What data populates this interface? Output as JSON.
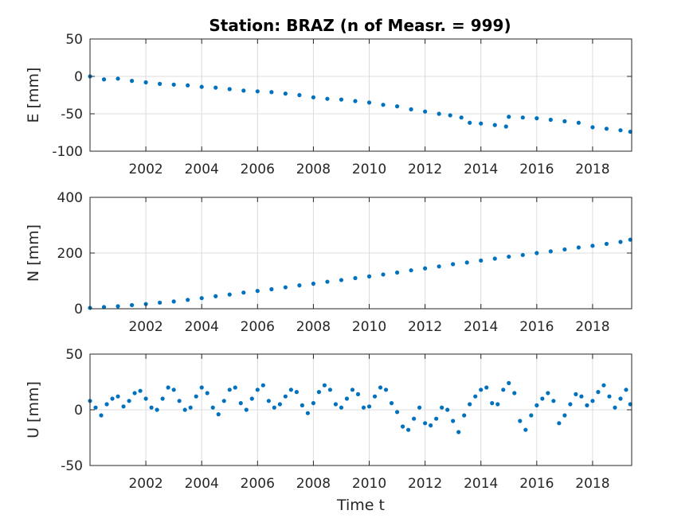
{
  "chart_data": [
    {
      "type": "scatter",
      "title": "Station: BRAZ (n of Measr. = 999)",
      "ylabel": "E [mm]",
      "xlabel": "",
      "xlim": [
        2000.0,
        2019.4
      ],
      "ylim": [
        -100,
        50
      ],
      "xticks": [
        2002,
        2004,
        2006,
        2008,
        2010,
        2012,
        2014,
        2016,
        2018
      ],
      "yticks": [
        -100,
        -50,
        0,
        50
      ],
      "grid": true,
      "color": "#0072BD",
      "series": [
        {
          "x": [
            2000.0,
            2000.5,
            2001.0,
            2001.5,
            2002.0,
            2002.5,
            2003.0,
            2003.5,
            2004.0,
            2004.5,
            2005.0,
            2005.5,
            2006.0,
            2006.5,
            2007.0,
            2007.5,
            2008.0,
            2008.5,
            2009.0,
            2009.5,
            2010.0,
            2010.5,
            2011.0,
            2011.5,
            2012.0,
            2012.5,
            2012.9,
            2013.3,
            2013.6,
            2014.0,
            2014.5,
            2014.9,
            2015.0,
            2015.5,
            2016.0,
            2016.5,
            2017.0,
            2017.5,
            2018.0,
            2018.5,
            2019.0,
            2019.35
          ],
          "y": [
            0,
            -4,
            -3,
            -6,
            -8,
            -10,
            -11,
            -12,
            -14,
            -15,
            -17,
            -19,
            -20,
            -21,
            -23,
            -25,
            -28,
            -30,
            -31,
            -33,
            -35,
            -38,
            -40,
            -44,
            -47,
            -50,
            -52,
            -55,
            -62,
            -63,
            -65,
            -67,
            -54,
            -55,
            -56,
            -58,
            -60,
            -62,
            -68,
            -70,
            -72,
            -74
          ]
        }
      ]
    },
    {
      "type": "scatter",
      "title": "",
      "ylabel": "N [mm]",
      "xlabel": "",
      "xlim": [
        2000.0,
        2019.4
      ],
      "ylim": [
        0,
        400
      ],
      "xticks": [
        2002,
        2004,
        2006,
        2008,
        2010,
        2012,
        2014,
        2016,
        2018
      ],
      "yticks": [
        0,
        200,
        400
      ],
      "grid": true,
      "color": "#0072BD",
      "series": [
        {
          "x": [
            2000.0,
            2000.5,
            2001.0,
            2001.5,
            2002.0,
            2002.5,
            2003.0,
            2003.5,
            2004.0,
            2004.5,
            2005.0,
            2005.5,
            2006.0,
            2006.5,
            2007.0,
            2007.5,
            2008.0,
            2008.5,
            2009.0,
            2009.5,
            2010.0,
            2010.5,
            2011.0,
            2011.5,
            2012.0,
            2012.5,
            2013.0,
            2013.5,
            2014.0,
            2014.5,
            2015.0,
            2015.5,
            2016.0,
            2016.5,
            2017.0,
            2017.5,
            2018.0,
            2018.5,
            2019.0,
            2019.35
          ],
          "y": [
            3,
            6,
            9,
            13,
            17,
            22,
            26,
            32,
            38,
            45,
            51,
            58,
            64,
            70,
            77,
            84,
            90,
            97,
            103,
            110,
            116,
            123,
            130,
            138,
            145,
            152,
            160,
            166,
            173,
            180,
            187,
            193,
            200,
            206,
            213,
            220,
            226,
            233,
            240,
            248
          ]
        }
      ]
    },
    {
      "type": "scatter",
      "title": "",
      "ylabel": "U [mm]",
      "xlabel": "Time t",
      "xlim": [
        2000.0,
        2019.4
      ],
      "ylim": [
        -50,
        50
      ],
      "xticks": [
        2002,
        2004,
        2006,
        2008,
        2010,
        2012,
        2014,
        2016,
        2018
      ],
      "yticks": [
        -50,
        0,
        50
      ],
      "grid": true,
      "color": "#0072BD",
      "series": [
        {
          "x": [
            2000.0,
            2000.2,
            2000.4,
            2000.6,
            2000.8,
            2001.0,
            2001.2,
            2001.4,
            2001.6,
            2001.8,
            2002.0,
            2002.2,
            2002.4,
            2002.6,
            2002.8,
            2003.0,
            2003.2,
            2003.4,
            2003.6,
            2003.8,
            2004.0,
            2004.2,
            2004.4,
            2004.6,
            2004.8,
            2005.0,
            2005.2,
            2005.4,
            2005.6,
            2005.8,
            2006.0,
            2006.2,
            2006.4,
            2006.6,
            2006.8,
            2007.0,
            2007.2,
            2007.4,
            2007.6,
            2007.8,
            2008.0,
            2008.2,
            2008.4,
            2008.6,
            2008.8,
            2009.0,
            2009.2,
            2009.4,
            2009.6,
            2009.8,
            2010.0,
            2010.2,
            2010.4,
            2010.6,
            2010.8,
            2011.0,
            2011.2,
            2011.4,
            2011.6,
            2011.8,
            2012.0,
            2012.2,
            2012.4,
            2012.6,
            2012.8,
            2013.0,
            2013.2,
            2013.4,
            2013.6,
            2013.8,
            2014.0,
            2014.2,
            2014.4,
            2014.6,
            2014.8,
            2015.0,
            2015.2,
            2015.4,
            2015.6,
            2015.8,
            2016.0,
            2016.2,
            2016.4,
            2016.6,
            2016.8,
            2017.0,
            2017.2,
            2017.4,
            2017.6,
            2017.8,
            2018.0,
            2018.2,
            2018.4,
            2018.6,
            2018.8,
            2019.0,
            2019.2,
            2019.35
          ],
          "y": [
            8,
            2,
            -5,
            5,
            10,
            12,
            3,
            8,
            15,
            17,
            10,
            2,
            0,
            10,
            20,
            18,
            8,
            0,
            2,
            12,
            20,
            15,
            2,
            -4,
            8,
            18,
            20,
            6,
            0,
            10,
            18,
            22,
            8,
            2,
            5,
            12,
            18,
            16,
            4,
            -3,
            6,
            16,
            22,
            18,
            5,
            2,
            10,
            18,
            14,
            2,
            3,
            12,
            20,
            18,
            6,
            -2,
            -15,
            -18,
            -8,
            2,
            -12,
            -14,
            -8,
            2,
            0,
            -10,
            -20,
            -5,
            5,
            12,
            18,
            20,
            6,
            5,
            18,
            24,
            15,
            -10,
            -18,
            -5,
            4,
            10,
            15,
            8,
            -12,
            -5,
            5,
            14,
            12,
            4,
            8,
            16,
            22,
            12,
            2,
            10,
            18,
            5
          ]
        }
      ]
    }
  ]
}
